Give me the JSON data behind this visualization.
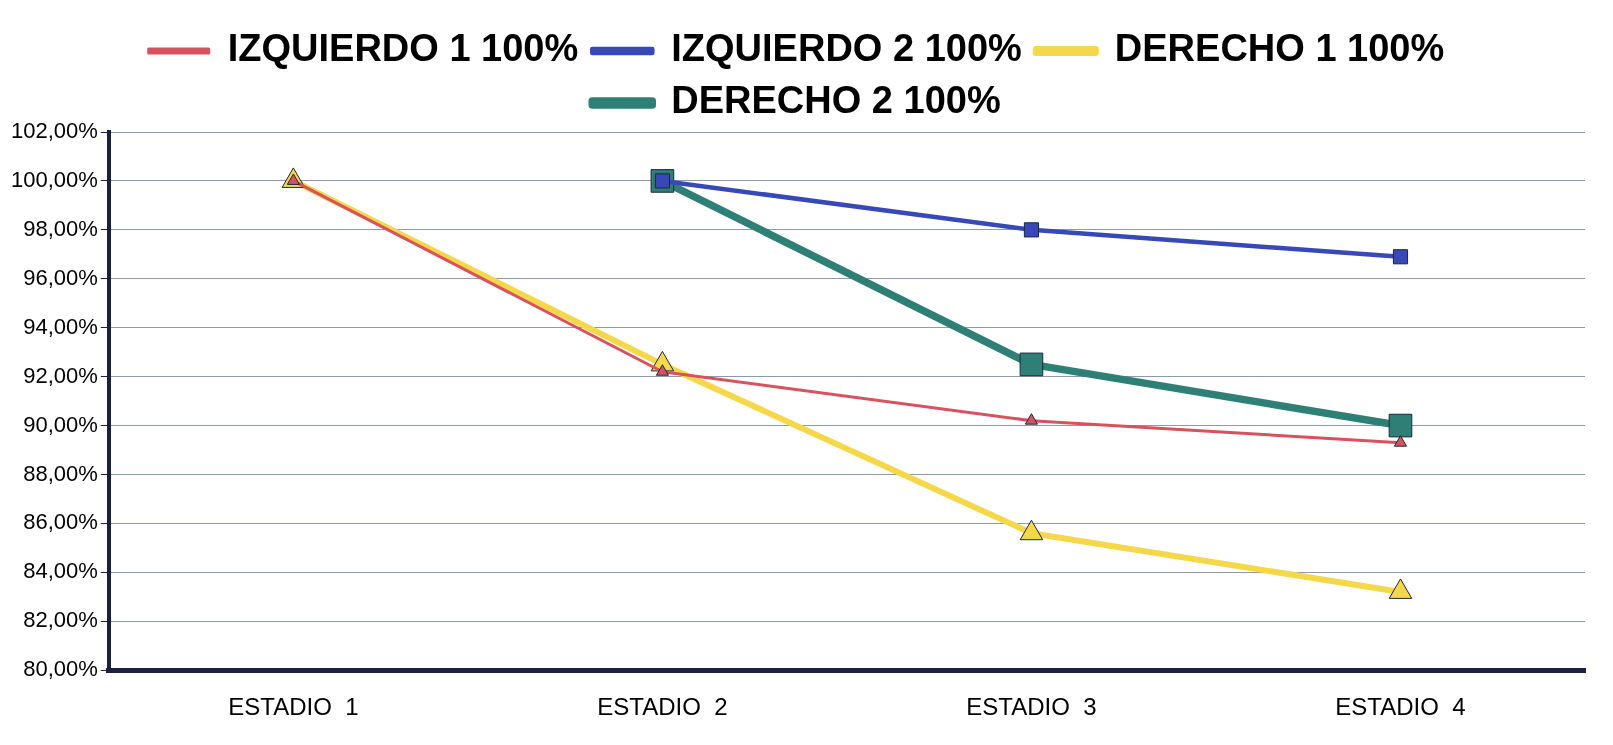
{
  "chart_data": {
    "type": "line",
    "categories": [
      "ESTADIO  1",
      "ESTADIO  2",
      "ESTADIO  3",
      "ESTADIO  4"
    ],
    "series": [
      {
        "name": "IZQUIERDO 1 100%",
        "color": "#d9515e",
        "marker": "triangle",
        "values": [
          100,
          92.2,
          90.2,
          89.3
        ]
      },
      {
        "name": "IZQUIERDO 2 100%",
        "color": "#3848b8",
        "marker": "square",
        "values": [
          null,
          100,
          98.0,
          96.9
        ]
      },
      {
        "name": "DERECHO 1 100%",
        "color": "#f5d84a",
        "marker": "triangle",
        "values": [
          100,
          92.5,
          85.6,
          83.2
        ]
      },
      {
        "name": "DERECHO 2 100%",
        "color": "#2e8076",
        "marker": "square",
        "values": [
          null,
          100,
          92.5,
          90.0
        ]
      }
    ],
    "ylim": [
      80,
      102
    ],
    "yticks": [
      {
        "value": 80,
        "label": "80,00%"
      },
      {
        "value": 82,
        "label": "82,00%"
      },
      {
        "value": 84,
        "label": "84,00%"
      },
      {
        "value": 86,
        "label": "86,00%"
      },
      {
        "value": 88,
        "label": "88,00%"
      },
      {
        "value": 90,
        "label": "90,00%"
      },
      {
        "value": 92,
        "label": "92,00%"
      },
      {
        "value": 94,
        "label": "94,00%"
      },
      {
        "value": 96,
        "label": "96,00%"
      },
      {
        "value": 98,
        "label": "98,00%"
      },
      {
        "value": 100,
        "label": "100,00%"
      },
      {
        "value": 102,
        "label": "102,00%"
      }
    ],
    "grid": "y",
    "legend": "top"
  }
}
